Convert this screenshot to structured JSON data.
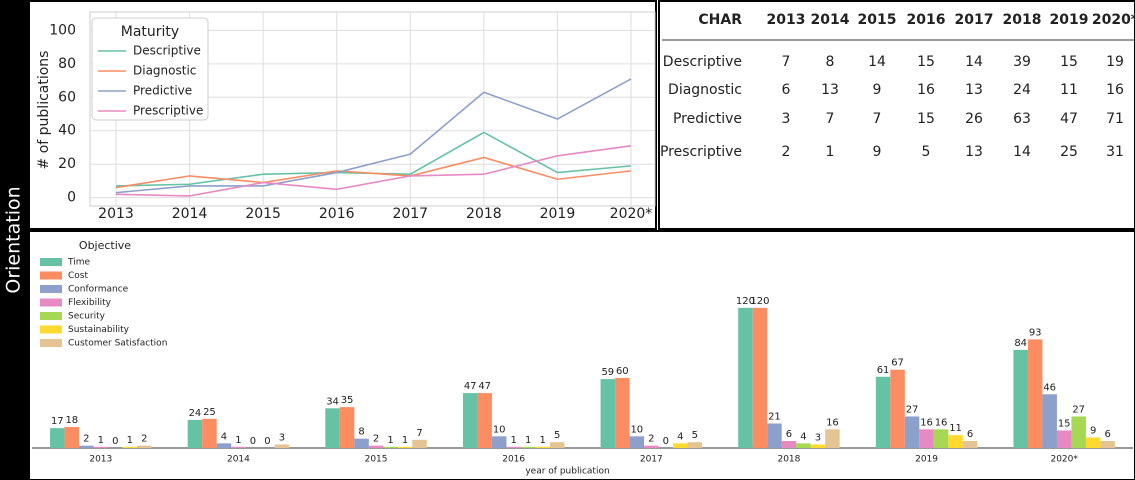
{
  "side_label": "Orientation",
  "chart_data": [
    {
      "type": "line",
      "y_label": "# of publications",
      "legend_title": "Maturity",
      "legend": "upper left",
      "grid": true,
      "categories": [
        "2013",
        "2014",
        "2015",
        "2016",
        "2017",
        "2018",
        "2019",
        "2020*"
      ],
      "series": [
        {
          "name": "Descriptive",
          "color": "#66c2a5",
          "values": [
            7,
            8,
            14,
            15,
            14,
            39,
            15,
            19
          ]
        },
        {
          "name": "Diagnostic",
          "color": "#fc8d62",
          "values": [
            6,
            13,
            9,
            16,
            13,
            24,
            11,
            16
          ]
        },
        {
          "name": "Predictive",
          "color": "#8da0cb",
          "values": [
            3,
            7,
            7,
            15,
            26,
            63,
            47,
            71
          ]
        },
        {
          "name": "Prescriptive",
          "color": "#e78ac3",
          "values": [
            2,
            1,
            9,
            5,
            13,
            14,
            25,
            31
          ]
        }
      ],
      "ylim": [
        -5,
        111
      ],
      "yticks": [
        0,
        20,
        40,
        60,
        80,
        100
      ]
    },
    {
      "type": "bar",
      "x_label": "year of publication",
      "legend_title": "Objective",
      "legend": "upper left",
      "categories": [
        "2013",
        "2014",
        "2015",
        "2016",
        "2017",
        "2018",
        "2019",
        "2020*"
      ],
      "series": [
        {
          "name": "Time",
          "color": "#66c2a5",
          "values": [
            17,
            24,
            34,
            47,
            59,
            120,
            61,
            84
          ]
        },
        {
          "name": "Cost",
          "color": "#fc8d62",
          "values": [
            18,
            25,
            35,
            47,
            60,
            120,
            67,
            93
          ]
        },
        {
          "name": "Conformance",
          "color": "#8da0cb",
          "values": [
            2,
            4,
            8,
            10,
            10,
            21,
            27,
            46
          ]
        },
        {
          "name": "Flexibility",
          "color": "#e78ac3",
          "values": [
            1,
            1,
            2,
            1,
            2,
            6,
            16,
            15
          ]
        },
        {
          "name": "Security",
          "color": "#a6d854",
          "values": [
            0,
            0,
            1,
            1,
            0,
            4,
            16,
            27
          ]
        },
        {
          "name": "Sustainability",
          "color": "#ffd92f",
          "values": [
            1,
            0,
            1,
            1,
            4,
            3,
            11,
            9
          ]
        },
        {
          "name": "Customer Satisfaction",
          "color": "#e5c494",
          "values": [
            2,
            3,
            7,
            5,
            5,
            16,
            6,
            6
          ]
        }
      ],
      "ylim": [
        0,
        125
      ]
    }
  ],
  "table": {
    "header": [
      "CHAR",
      "2013",
      "2014",
      "2015",
      "2016",
      "2017",
      "2018",
      "2019",
      "2020*"
    ],
    "rows": [
      [
        "Descriptive",
        7,
        8,
        14,
        15,
        14,
        39,
        15,
        19
      ],
      [
        "Diagnostic",
        6,
        13,
        9,
        16,
        13,
        24,
        11,
        16
      ],
      [
        "Predictive",
        3,
        7,
        7,
        15,
        26,
        63,
        47,
        71
      ],
      [
        "Prescriptive",
        2,
        1,
        9,
        5,
        13,
        14,
        25,
        31
      ]
    ]
  }
}
